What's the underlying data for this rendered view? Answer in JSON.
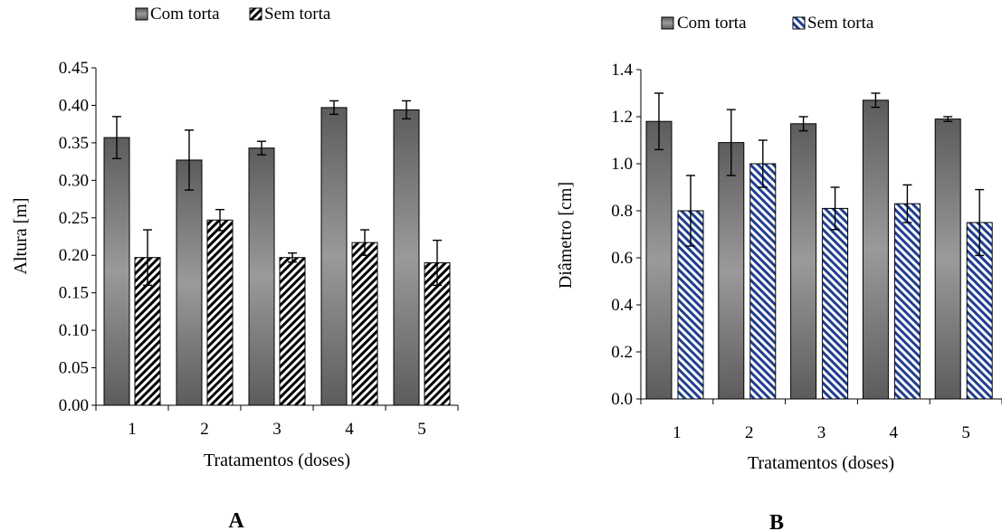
{
  "chart_data": [
    {
      "type": "bar",
      "panel_label": "A",
      "xlabel": "Tratamentos (doses)",
      "ylabel": "Altura [m]",
      "categories": [
        "1",
        "2",
        "3",
        "4",
        "5"
      ],
      "ylim": [
        0,
        0.45
      ],
      "yticks": [
        "0.00",
        "0.05",
        "0.10",
        "0.15",
        "0.20",
        "0.25",
        "0.30",
        "0.35",
        "0.40",
        "0.45"
      ],
      "grid": false,
      "legend_position": "top",
      "series": [
        {
          "name": "Com torta",
          "values": [
            0.357,
            0.327,
            0.343,
            0.397,
            0.394
          ],
          "errors": [
            0.028,
            0.04,
            0.009,
            0.009,
            0.012
          ],
          "fill": "gray-gradient",
          "color": "#7a7a7a"
        },
        {
          "name": "Sem torta",
          "values": [
            0.197,
            0.247,
            0.197,
            0.217,
            0.19
          ],
          "errors": [
            0.037,
            0.014,
            0.006,
            0.017,
            0.03
          ],
          "fill": "hatch-black",
          "color": "#000000"
        }
      ]
    },
    {
      "type": "bar",
      "panel_label": "B",
      "xlabel": "Tratamentos (doses)",
      "ylabel": "Diâmetro [cm]",
      "categories": [
        "1",
        "2",
        "3",
        "4",
        "5"
      ],
      "ylim": [
        0,
        1.4
      ],
      "yticks": [
        "0.0",
        "0.2",
        "0.4",
        "0.6",
        "0.8",
        "1.0",
        "1.2",
        "1.4"
      ],
      "grid": false,
      "legend_position": "top",
      "series": [
        {
          "name": "Com torta",
          "values": [
            1.18,
            1.09,
            1.17,
            1.27,
            1.19
          ],
          "errors": [
            0.12,
            0.14,
            0.03,
            0.03,
            0.01
          ],
          "fill": "gray-gradient",
          "color": "#7a7a7a"
        },
        {
          "name": "Sem torta",
          "values": [
            0.8,
            1.0,
            0.81,
            0.83,
            0.75
          ],
          "errors": [
            0.15,
            0.1,
            0.09,
            0.08,
            0.14
          ],
          "fill": "hatch-blue",
          "color": "#1f3f8f"
        }
      ]
    }
  ]
}
